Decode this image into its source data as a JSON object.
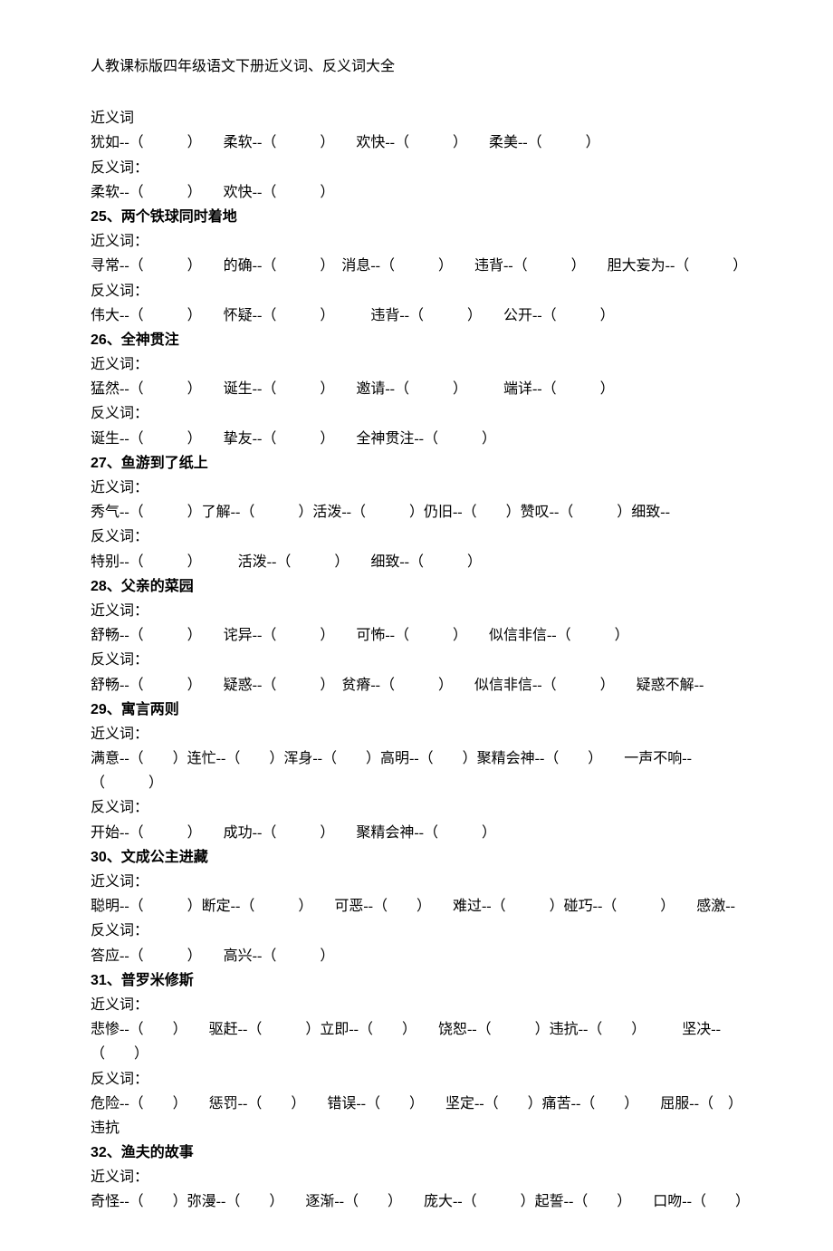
{
  "doc_title": "人教课标版四年级语文下册近义词、反义词大全",
  "labels": {
    "syn": "近义词：",
    "syn_short": "近义词",
    "ant": "反义词："
  },
  "intro": {
    "syn_line": "犹如--（　　　）　　柔软--（　　　）　　欢快--（　　　）　　柔美--（　　　）",
    "ant_line": "柔软--（　　　）　　欢快--（　　　）"
  },
  "sections": [
    {
      "title": "25、两个铁球同时着地",
      "syn": "寻常--（　　　）　　的确--（　　　）　消息--（　　　）　　违背--（　　　）　　胆大妄为--（　　　）",
      "ant": "伟大--（　　　）　　怀疑--（　　　）　　　违背--（　　　）　　公开--（　　　）"
    },
    {
      "title": "26、全神贯注",
      "syn": "猛然--（　　　）　　诞生--（　　　）　　邀请--（　　　）　　　端详--（　　　）",
      "ant": "诞生--（　　　）　　挚友--（　　　）　　全神贯注--（　　　）"
    },
    {
      "title": "27、鱼游到了纸上",
      "syn": "秀气--（　　　）了解--（　　　）活泼--（　　　）仍旧--（　　）赞叹--（　　　）细致--",
      "ant": "特别--（　　　）　　　活泼--（　　　）　　细致--（　　　）"
    },
    {
      "title": "28、父亲的菜园",
      "syn": "舒畅--（　　　）　　诧异--（　　　）　　可怖--（　　　）　　似信非信--（　　　）",
      "ant": "舒畅--（　　　）　　疑惑--（　　　）　贫瘠--（　　　）　　似信非信--（　　　）　　疑惑不解--"
    },
    {
      "title": "29、寓言两则",
      "syn": "满意--（　　）连忙--（　　）浑身--（　　）高明--（　　）聚精会神--（　　）　　一声不响--（　　　）",
      "ant": "开始--（　　　）　　成功--（　　　）　　聚精会神--（　　　）"
    },
    {
      "title": "30、文成公主进藏",
      "syn": "聪明--（　　　）断定--（　　　）　　可恶--（　　）　　难过--（　　　）碰巧--（　　　）　　感激--",
      "ant": "答应--（　　　）　　高兴--（　　　）"
    },
    {
      "title": "31、普罗米修斯",
      "syn": "悲惨--（　　）　　驱赶--（　　　）立即--（　　）　　饶恕--（　　　）违抗--（　　）　　　坚决--（　　）",
      "ant": "危险--（　　）　　惩罚--（　　）　　错误--（　　）　　坚定--（　　）痛苦--（　　）　　屈服--（　）　　违抗"
    },
    {
      "title": "32、渔夫的故事",
      "syn": "奇怪--（　　）弥漫--（　　）　　逐渐--（　　）　　庞大--（　　　）起誓--（　　）　　口吻--（　　）",
      "ant": null
    }
  ]
}
